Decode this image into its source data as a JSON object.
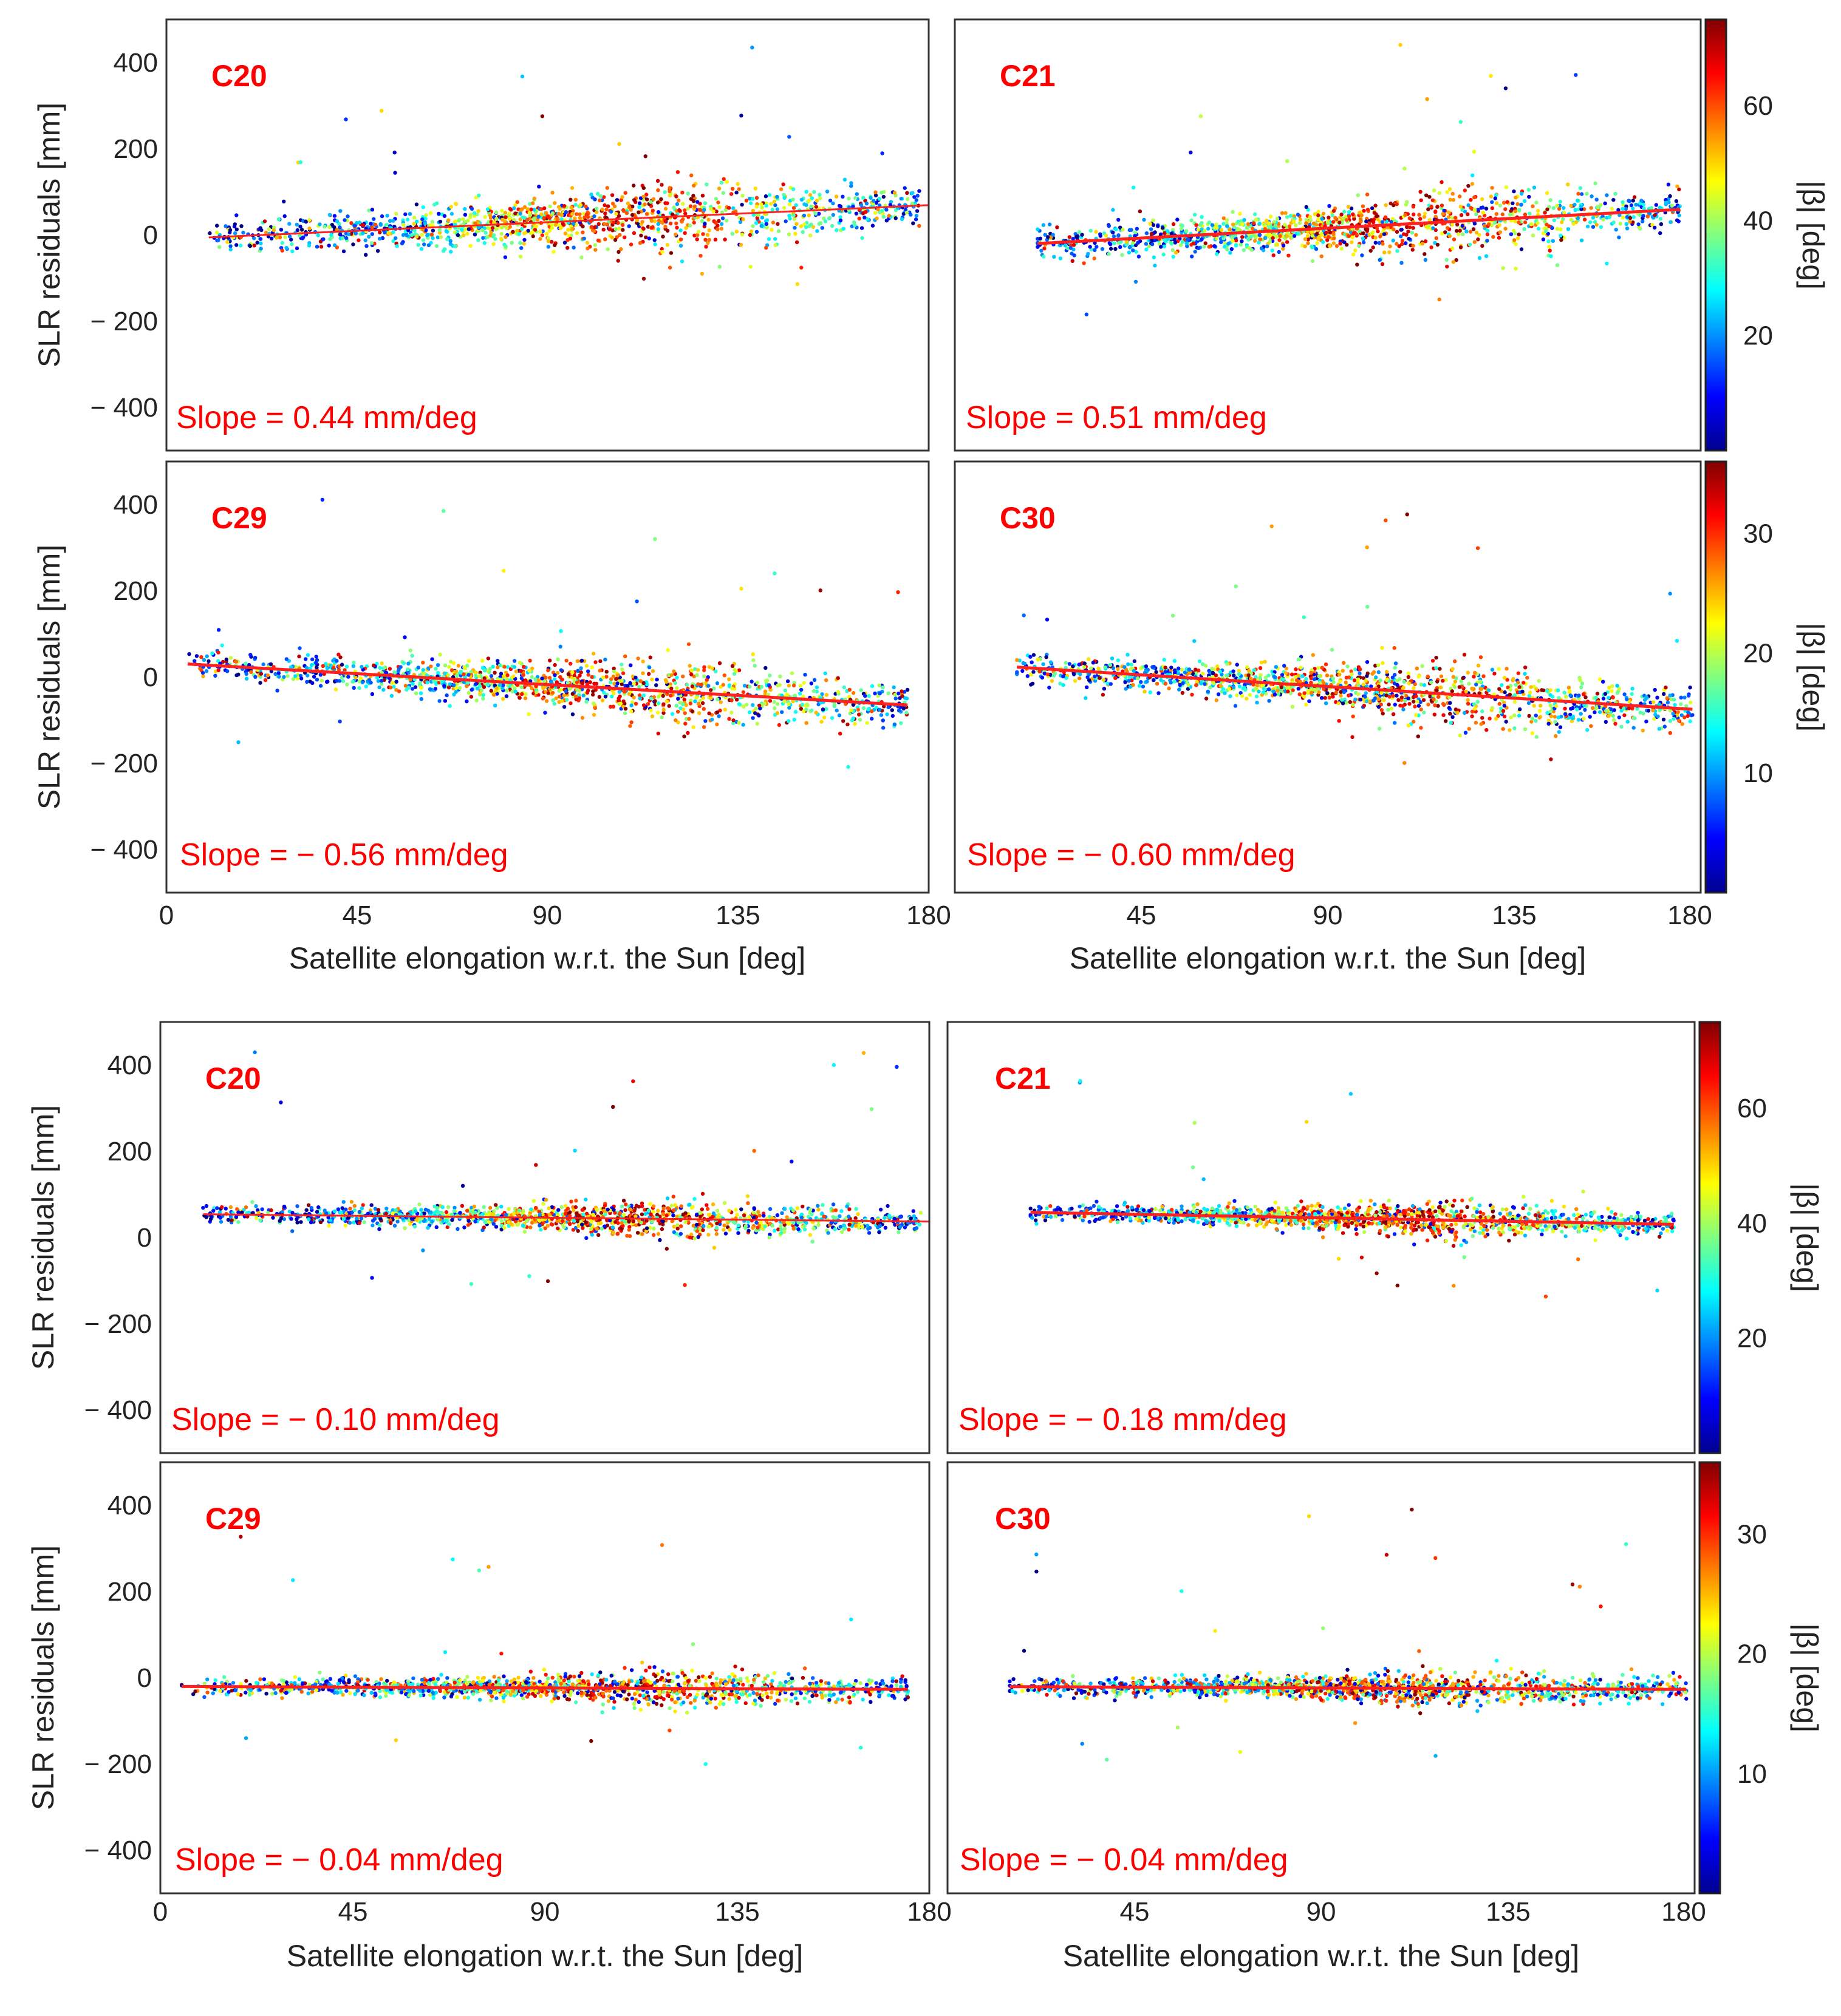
{
  "figure": {
    "xlabel": "Satellite elongation w.r.t. the Sun [deg]",
    "ylabel": "SLR residuals [mm]",
    "x_ticks": [
      "0",
      "45",
      "90",
      "135",
      "180"
    ],
    "x_ticks_right": [
      "45",
      "90",
      "135",
      "180"
    ],
    "y_ticks": [
      "400",
      "200",
      "0",
      "− 200",
      "− 400"
    ],
    "colorbar_label": "|β| [deg]",
    "colormap": [
      "#00008f",
      "#0000ff",
      "#0080ff",
      "#00ffff",
      "#80ff80",
      "#ffff00",
      "#ff8000",
      "#ff0000",
      "#800000"
    ]
  },
  "colorbars": [
    {
      "ticks": [
        "60",
        "40",
        "20"
      ],
      "values": [
        60,
        40,
        20
      ],
      "range": [
        0,
        75
      ]
    },
    {
      "ticks": [
        "30",
        "20",
        "10"
      ],
      "values": [
        30,
        20,
        10
      ],
      "range": [
        0,
        36
      ]
    },
    {
      "ticks": [
        "60",
        "40",
        "20"
      ],
      "values": [
        60,
        40,
        20
      ],
      "range": [
        0,
        75
      ]
    },
    {
      "ticks": [
        "30",
        "20",
        "10"
      ],
      "values": [
        30,
        20,
        10
      ],
      "range": [
        0,
        36
      ]
    }
  ],
  "chart_data": [
    {
      "type": "scatter",
      "satellite": "C20",
      "slope_label": "Slope = 0.44 mm/deg",
      "slope": 0.44,
      "fit_y_at_x0": -10,
      "fit_x_range": [
        10,
        180
      ],
      "xlim": [
        0,
        180
      ],
      "ylim": [
        -500,
        500
      ],
      "beta_max": 75,
      "x_span": [
        10,
        178
      ],
      "spread": 60,
      "color_trend": 0.6
    },
    {
      "type": "scatter",
      "satellite": "C21",
      "slope_label": "Slope = 0.51 mm/deg",
      "slope": 0.51,
      "fit_y_at_x0": -30,
      "fit_x_range": [
        20,
        175
      ],
      "xlim": [
        0,
        180
      ],
      "ylim": [
        -500,
        500
      ],
      "beta_max": 75,
      "x_span": [
        20,
        175
      ],
      "spread": 55,
      "color_trend": 0.6
    },
    {
      "type": "scatter",
      "satellite": "C29",
      "slope_label": "Slope = − 0.56 mm/deg",
      "slope": -0.56,
      "fit_y_at_x0": 33,
      "fit_x_range": [
        5,
        175
      ],
      "xlim": [
        0,
        180
      ],
      "ylim": [
        -500,
        500
      ],
      "beta_max": 36,
      "x_span": [
        5,
        175
      ],
      "spread": 55,
      "color_trend": 0.4
    },
    {
      "type": "scatter",
      "satellite": "C30",
      "slope_label": "Slope = − 0.60 mm/deg",
      "slope": -0.6,
      "fit_y_at_x0": 32,
      "fit_x_range": [
        15,
        178
      ],
      "xlim": [
        0,
        180
      ],
      "ylim": [
        -500,
        500
      ],
      "beta_max": 36,
      "x_span": [
        15,
        178
      ],
      "spread": 55,
      "color_trend": 0.4
    },
    {
      "type": "scatter",
      "satellite": "C20",
      "slope_label": "Slope = − 0.10 mm/deg",
      "slope": -0.1,
      "fit_y_at_x0": 55,
      "fit_x_range": [
        10,
        180
      ],
      "xlim": [
        0,
        180
      ],
      "ylim": [
        -500,
        500
      ],
      "beta_max": 75,
      "x_span": [
        10,
        178
      ],
      "spread": 32,
      "color_trend": 0.6
    },
    {
      "type": "scatter",
      "satellite": "C21",
      "slope_label": "Slope = − 0.18 mm/deg",
      "slope": -0.18,
      "fit_y_at_x0": 62,
      "fit_x_range": [
        20,
        175
      ],
      "xlim": [
        0,
        180
      ],
      "ylim": [
        -500,
        500
      ],
      "beta_max": 75,
      "x_span": [
        20,
        175
      ],
      "spread": 30,
      "color_trend": 0.6
    },
    {
      "type": "scatter",
      "satellite": "C29",
      "slope_label": "Slope = − 0.04 mm/deg",
      "slope": -0.04,
      "fit_y_at_x0": -20,
      "fit_x_range": [
        5,
        175
      ],
      "xlim": [
        0,
        180
      ],
      "ylim": [
        -500,
        500
      ],
      "beta_max": 36,
      "x_span": [
        5,
        175
      ],
      "spread": 30,
      "color_trend": 0.4
    },
    {
      "type": "scatter",
      "satellite": "C30",
      "slope_label": "Slope = − 0.04 mm/deg",
      "slope": -0.04,
      "fit_y_at_x0": -20,
      "fit_x_range": [
        15,
        178
      ],
      "xlim": [
        0,
        180
      ],
      "ylim": [
        -500,
        500
      ],
      "beta_max": 36,
      "x_span": [
        15,
        178
      ],
      "spread": 30,
      "color_trend": 0.4
    }
  ]
}
